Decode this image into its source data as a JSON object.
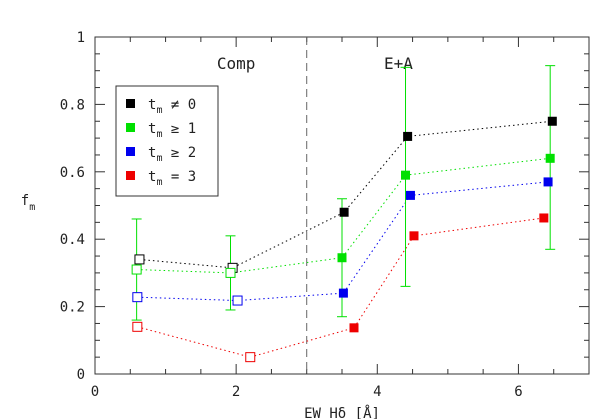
{
  "chart_data": {
    "type": "scatter",
    "ylabel": "f",
    "ylabel_sub": "m",
    "xlabel": "EW Hδ [Å]",
    "xlim": [
      0,
      7
    ],
    "ylim": [
      0,
      1
    ],
    "xticks": [
      0,
      2,
      4,
      6
    ],
    "yticks": [
      0,
      0.2,
      0.4,
      0.6,
      0.8,
      1
    ],
    "ytick_labels": [
      "0",
      "0.2",
      "0.4",
      "0.6",
      "0.8",
      "1"
    ],
    "divider_x": 3.0,
    "regions": [
      {
        "label": "Comp",
        "x": 2.0
      },
      {
        "label": "E+A",
        "x": 4.3
      }
    ],
    "legend_position": "top-left",
    "series": [
      {
        "name": "t_m ≠ 0",
        "legend_sub": "m",
        "legend_rest": " ≠ 0",
        "color": "#000000",
        "points": [
          {
            "x": 0.63,
            "y": 0.34,
            "filled": false
          },
          {
            "x": 1.95,
            "y": 0.315,
            "filled": false
          },
          {
            "x": 3.53,
            "y": 0.48,
            "filled": true
          },
          {
            "x": 4.43,
            "y": 0.705,
            "filled": true
          },
          {
            "x": 6.48,
            "y": 0.75,
            "filled": true
          }
        ]
      },
      {
        "name": "t_m ≥ 1",
        "legend_sub": "m",
        "legend_rest": " ≥ 1",
        "color": "#00e000",
        "points": [
          {
            "x": 0.59,
            "y": 0.31,
            "filled": false,
            "err": [
              0.16,
              0.46
            ]
          },
          {
            "x": 1.92,
            "y": 0.3,
            "filled": false,
            "err": [
              0.19,
              0.41
            ]
          },
          {
            "x": 3.5,
            "y": 0.345,
            "filled": true,
            "err": [
              0.17,
              0.52
            ]
          },
          {
            "x": 4.4,
            "y": 0.59,
            "filled": true,
            "err": [
              0.26,
              0.91
            ]
          },
          {
            "x": 6.45,
            "y": 0.64,
            "filled": true,
            "err": [
              0.37,
              0.915
            ]
          }
        ]
      },
      {
        "name": "t_m ≥ 2",
        "legend_sub": "m",
        "legend_rest": " ≥ 2",
        "color": "#0000ee",
        "points": [
          {
            "x": 0.6,
            "y": 0.228,
            "filled": false
          },
          {
            "x": 2.02,
            "y": 0.218,
            "filled": false
          },
          {
            "x": 3.52,
            "y": 0.24,
            "filled": true
          },
          {
            "x": 4.47,
            "y": 0.53,
            "filled": true
          },
          {
            "x": 6.42,
            "y": 0.57,
            "filled": true
          }
        ]
      },
      {
        "name": "t_m = 3",
        "legend_sub": "m",
        "legend_rest": " = 3",
        "color": "#ee0000",
        "points": [
          {
            "x": 0.6,
            "y": 0.14,
            "filled": false
          },
          {
            "x": 2.2,
            "y": 0.05,
            "filled": false
          },
          {
            "x": 3.67,
            "y": 0.137,
            "filled": true
          },
          {
            "x": 4.52,
            "y": 0.41,
            "filled": true
          },
          {
            "x": 6.36,
            "y": 0.463,
            "filled": true
          }
        ]
      }
    ]
  }
}
